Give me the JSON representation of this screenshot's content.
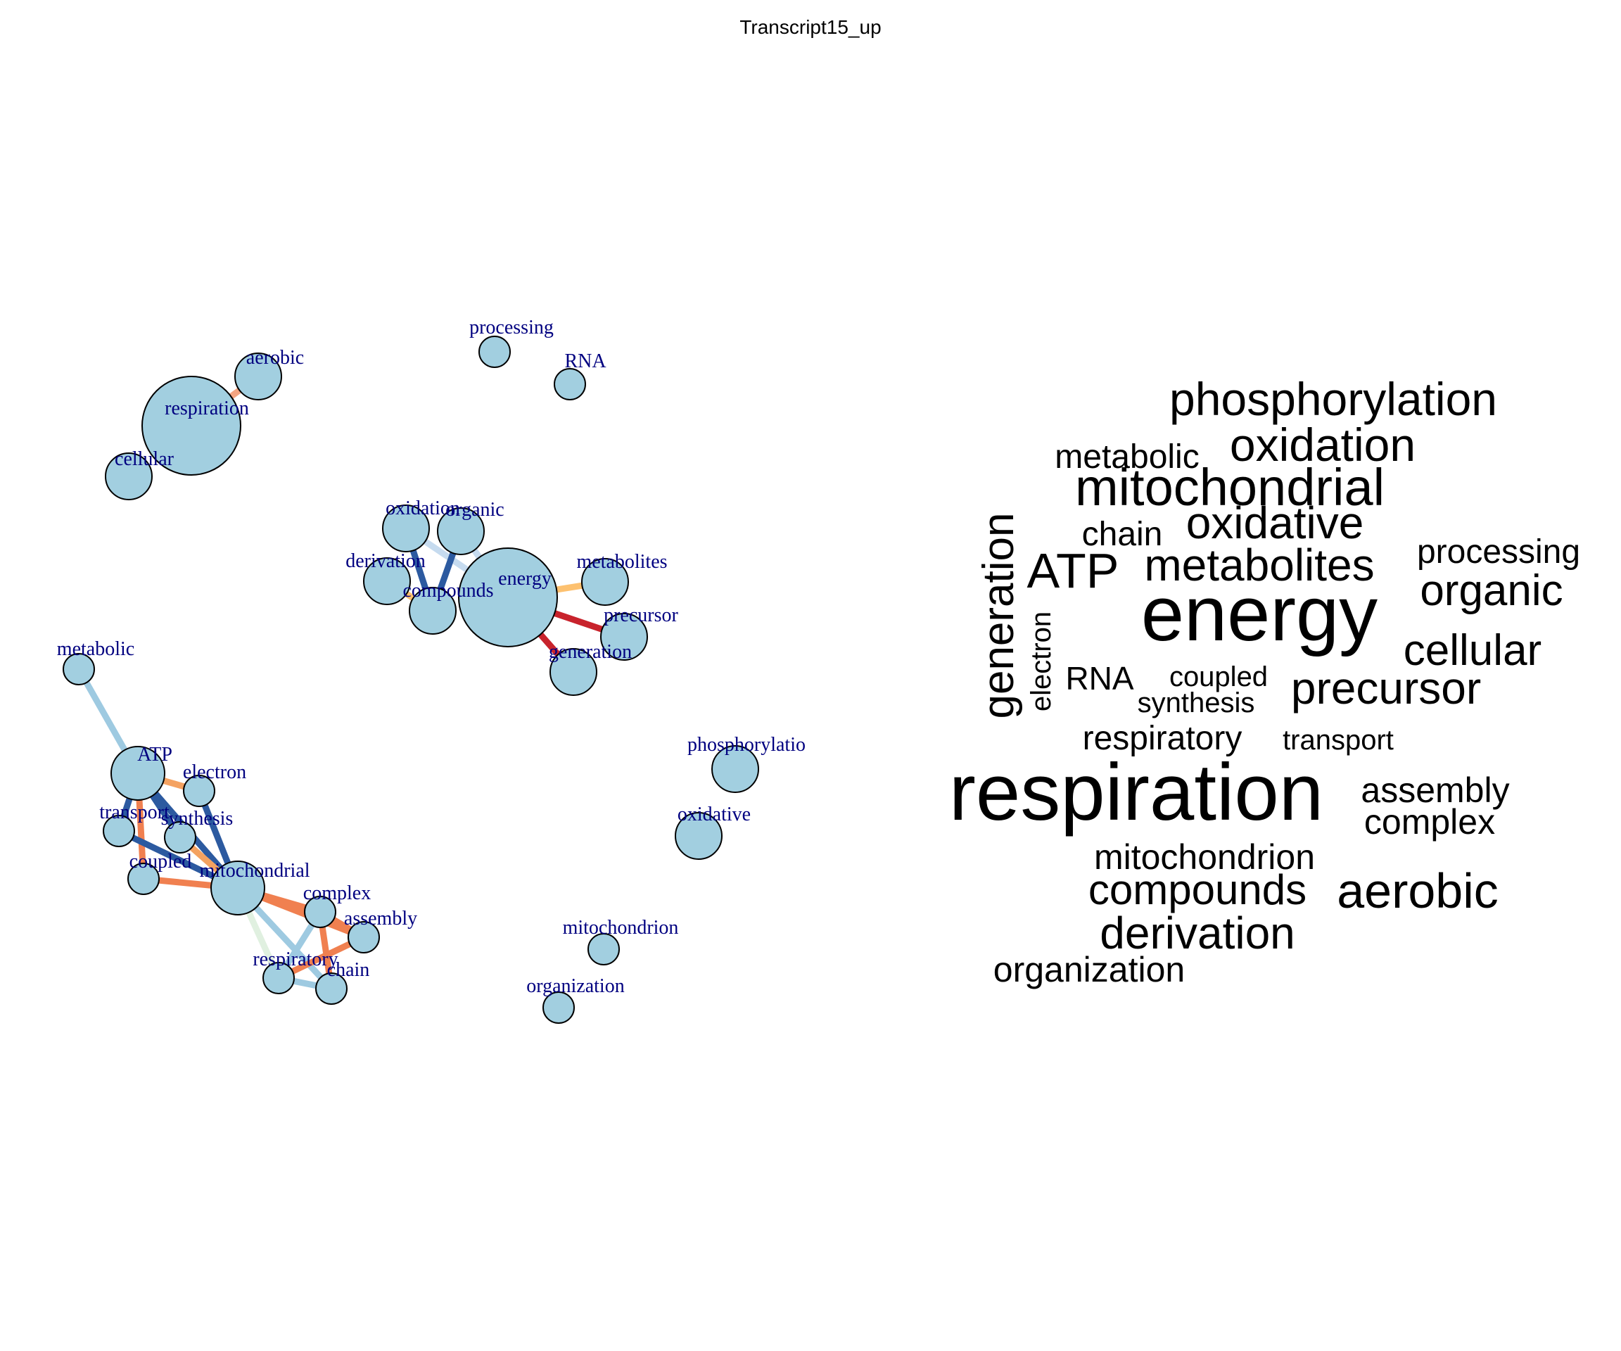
{
  "title": "Transcript15_up",
  "network": {
    "node_color": "#a2cfe0",
    "label_color": "#000080",
    "nodes": [
      {
        "id": "processing",
        "label": "processing",
        "size": 1
      },
      {
        "id": "RNA",
        "label": "RNA",
        "size": 1
      },
      {
        "id": "aerobic",
        "label": "aerobic",
        "size": 2
      },
      {
        "id": "respiration",
        "label": "respiration",
        "size": 6
      },
      {
        "id": "cellular",
        "label": "cellular",
        "size": 2
      },
      {
        "id": "oxidation",
        "label": "oxidation",
        "size": 2
      },
      {
        "id": "organic",
        "label": "organic",
        "size": 2
      },
      {
        "id": "derivation",
        "label": "derivation",
        "size": 2
      },
      {
        "id": "compounds",
        "label": "compounds",
        "size": 2
      },
      {
        "id": "energy",
        "label": "energy",
        "size": 6
      },
      {
        "id": "metabolites",
        "label": "metabolites",
        "size": 2
      },
      {
        "id": "precursor",
        "label": "precursor",
        "size": 2
      },
      {
        "id": "generation",
        "label": "generation",
        "size": 2
      },
      {
        "id": "metabolic",
        "label": "metabolic",
        "size": 1
      },
      {
        "id": "ATP",
        "label": "ATP",
        "size": 3
      },
      {
        "id": "electron",
        "label": "electron",
        "size": 1
      },
      {
        "id": "transport",
        "label": "transport",
        "size": 1
      },
      {
        "id": "synthesis",
        "label": "synthesis",
        "size": 1
      },
      {
        "id": "coupled",
        "label": "coupled",
        "size": 1
      },
      {
        "id": "mitochondrial",
        "label": "mitochondrial",
        "size": 3
      },
      {
        "id": "complex",
        "label": "complex",
        "size": 1
      },
      {
        "id": "assembly",
        "label": "assembly",
        "size": 1
      },
      {
        "id": "respiratory",
        "label": "respiratory",
        "size": 1
      },
      {
        "id": "chain",
        "label": "chain",
        "size": 1
      },
      {
        "id": "phosphorylation",
        "label": "phosphorylatio",
        "size": 2
      },
      {
        "id": "oxidative",
        "label": "oxidative",
        "size": 2
      },
      {
        "id": "mitochondrion",
        "label": "mitochondrion",
        "size": 1
      },
      {
        "id": "organization",
        "label": "organization",
        "size": 1
      }
    ],
    "edges": [
      {
        "source": "respiration",
        "target": "aerobic",
        "color": "#f4a582"
      },
      {
        "source": "oxidation",
        "target": "energy",
        "color": "#c6dbef"
      },
      {
        "source": "oxidation",
        "target": "compounds",
        "color": "#2c5aa0"
      },
      {
        "source": "organic",
        "target": "compounds",
        "color": "#2c5aa0"
      },
      {
        "source": "organic",
        "target": "energy",
        "color": "#c6dbef"
      },
      {
        "source": "derivation",
        "target": "compounds",
        "color": "#fdc170"
      },
      {
        "source": "energy",
        "target": "metabolites",
        "color": "#fdc170"
      },
      {
        "source": "energy",
        "target": "precursor",
        "color": "#c8232c"
      },
      {
        "source": "energy",
        "target": "generation",
        "color": "#c8232c"
      },
      {
        "source": "metabolic",
        "target": "ATP",
        "color": "#9ecae1"
      },
      {
        "source": "ATP",
        "target": "electron",
        "color": "#f4a261"
      },
      {
        "source": "ATP",
        "target": "mitochondrial",
        "color": "#2c5aa0"
      },
      {
        "source": "ATP",
        "target": "transport",
        "color": "#2c5aa0"
      },
      {
        "source": "ATP",
        "target": "synthesis",
        "color": "#2c5aa0"
      },
      {
        "source": "ATP",
        "target": "coupled",
        "color": "#f08050"
      },
      {
        "source": "electron",
        "target": "mitochondrial",
        "color": "#2c5aa0"
      },
      {
        "source": "transport",
        "target": "mitochondrial",
        "color": "#2c5aa0"
      },
      {
        "source": "synthesis",
        "target": "mitochondrial",
        "color": "#f4a261"
      },
      {
        "source": "coupled",
        "target": "mitochondrial",
        "color": "#f08050"
      },
      {
        "source": "mitochondrial",
        "target": "complex",
        "color": "#f08050"
      },
      {
        "source": "mitochondrial",
        "target": "assembly",
        "color": "#f08050"
      },
      {
        "source": "mitochondrial",
        "target": "respiratory",
        "color": "#e0f0e0"
      },
      {
        "source": "mitochondrial",
        "target": "chain",
        "color": "#9ecae1"
      },
      {
        "source": "complex",
        "target": "assembly",
        "color": "#f08050"
      },
      {
        "source": "complex",
        "target": "chain",
        "color": "#f08050"
      },
      {
        "source": "complex",
        "target": "respiratory",
        "color": "#9ecae1"
      },
      {
        "source": "assembly",
        "target": "respiratory",
        "color": "#f08050"
      },
      {
        "source": "respiratory",
        "target": "chain",
        "color": "#9ecae1"
      }
    ]
  },
  "word_cloud": {
    "words": [
      {
        "text": "phosphorylation",
        "weight": 66,
        "vertical": false
      },
      {
        "text": "metabolic",
        "weight": 48,
        "vertical": false
      },
      {
        "text": "oxidation",
        "weight": 66,
        "vertical": false
      },
      {
        "text": "mitochondrial",
        "weight": 74,
        "vertical": false
      },
      {
        "text": "generation",
        "weight": 62,
        "vertical": true
      },
      {
        "text": "chain",
        "weight": 48,
        "vertical": false
      },
      {
        "text": "oxidative",
        "weight": 64,
        "vertical": false
      },
      {
        "text": "processing",
        "weight": 48,
        "vertical": false
      },
      {
        "text": "ATP",
        "weight": 70,
        "vertical": false
      },
      {
        "text": "metabolites",
        "weight": 64,
        "vertical": false
      },
      {
        "text": "electron",
        "weight": 40,
        "vertical": true
      },
      {
        "text": "energy",
        "weight": 110,
        "vertical": false
      },
      {
        "text": "organic",
        "weight": 62,
        "vertical": false
      },
      {
        "text": "cellular",
        "weight": 62,
        "vertical": false
      },
      {
        "text": "RNA",
        "weight": 46,
        "vertical": false
      },
      {
        "text": "coupled",
        "weight": 40,
        "vertical": false
      },
      {
        "text": "synthesis",
        "weight": 40,
        "vertical": false
      },
      {
        "text": "precursor",
        "weight": 64,
        "vertical": false
      },
      {
        "text": "respiratory",
        "weight": 48,
        "vertical": false
      },
      {
        "text": "transport",
        "weight": 40,
        "vertical": false
      },
      {
        "text": "respiration",
        "weight": 114,
        "vertical": false
      },
      {
        "text": "assembly",
        "weight": 50,
        "vertical": false
      },
      {
        "text": "complex",
        "weight": 50,
        "vertical": false
      },
      {
        "text": "mitochondrion",
        "weight": 50,
        "vertical": false
      },
      {
        "text": "compounds",
        "weight": 60,
        "vertical": false
      },
      {
        "text": "aerobic",
        "weight": 70,
        "vertical": false
      },
      {
        "text": "derivation",
        "weight": 64,
        "vertical": false
      },
      {
        "text": "organization",
        "weight": 50,
        "vertical": false
      }
    ]
  }
}
